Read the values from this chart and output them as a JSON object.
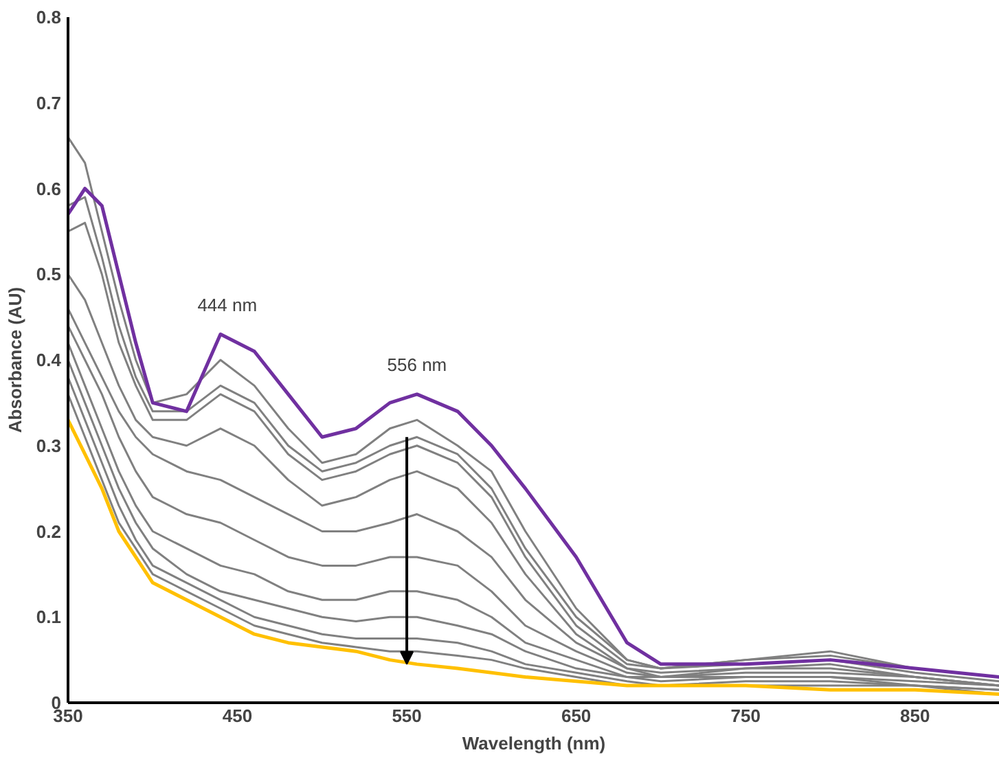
{
  "chart_data": {
    "type": "line",
    "xlabel": "Wavelength (nm)",
    "ylabel": "Absorbance (AU)",
    "x": [
      350,
      360,
      370,
      380,
      390,
      400,
      420,
      440,
      460,
      480,
      500,
      520,
      540,
      556,
      580,
      600,
      620,
      650,
      680,
      700,
      750,
      800,
      850,
      900
    ],
    "xlim": [
      350,
      900
    ],
    "xticks": [
      350,
      450,
      550,
      650,
      750,
      850
    ],
    "ylim": [
      0,
      0.8
    ],
    "yticks": [
      0,
      0.1,
      0.2,
      0.3,
      0.4,
      0.5,
      0.6,
      0.7,
      0.8
    ],
    "grid": false,
    "marker": "none",
    "line_style": "solid",
    "annotations": [
      {
        "text": "444 nm",
        "x": 444,
        "y": 0.43
      },
      {
        "text": "556 nm",
        "x": 556,
        "y": 0.36
      }
    ],
    "series": [
      {
        "color": "#808080",
        "values": [
          0.66,
          0.63,
          0.55,
          0.47,
          0.4,
          0.35,
          0.36,
          0.4,
          0.37,
          0.32,
          0.28,
          0.29,
          0.32,
          0.33,
          0.3,
          0.27,
          0.2,
          0.11,
          0.05,
          0.04,
          0.05,
          0.06,
          0.04,
          0.03
        ]
      },
      {
        "color": "#808080",
        "values": [
          0.58,
          0.59,
          0.52,
          0.44,
          0.38,
          0.34,
          0.34,
          0.37,
          0.35,
          0.3,
          0.27,
          0.28,
          0.3,
          0.31,
          0.29,
          0.25,
          0.18,
          0.1,
          0.05,
          0.04,
          0.05,
          0.055,
          0.04,
          0.03
        ]
      },
      {
        "color": "#808080",
        "values": [
          0.55,
          0.56,
          0.5,
          0.42,
          0.37,
          0.33,
          0.33,
          0.36,
          0.34,
          0.29,
          0.26,
          0.27,
          0.29,
          0.3,
          0.28,
          0.24,
          0.17,
          0.09,
          0.045,
          0.04,
          0.045,
          0.05,
          0.035,
          0.025
        ]
      },
      {
        "color": "#808080",
        "values": [
          0.5,
          0.47,
          0.42,
          0.37,
          0.33,
          0.31,
          0.3,
          0.32,
          0.3,
          0.26,
          0.23,
          0.24,
          0.26,
          0.27,
          0.25,
          0.21,
          0.15,
          0.08,
          0.04,
          0.035,
          0.04,
          0.045,
          0.03,
          0.02
        ]
      },
      {
        "color": "#808080",
        "values": [
          0.46,
          0.42,
          0.38,
          0.34,
          0.31,
          0.29,
          0.27,
          0.26,
          0.24,
          0.22,
          0.2,
          0.2,
          0.21,
          0.22,
          0.2,
          0.17,
          0.12,
          0.07,
          0.04,
          0.03,
          0.04,
          0.04,
          0.03,
          0.02
        ]
      },
      {
        "color": "#808080",
        "values": [
          0.44,
          0.4,
          0.36,
          0.31,
          0.27,
          0.24,
          0.22,
          0.21,
          0.19,
          0.17,
          0.16,
          0.16,
          0.17,
          0.17,
          0.16,
          0.13,
          0.09,
          0.06,
          0.035,
          0.03,
          0.035,
          0.035,
          0.03,
          0.02
        ]
      },
      {
        "color": "#808080",
        "values": [
          0.42,
          0.37,
          0.32,
          0.27,
          0.23,
          0.2,
          0.18,
          0.16,
          0.15,
          0.13,
          0.12,
          0.12,
          0.13,
          0.13,
          0.12,
          0.1,
          0.07,
          0.05,
          0.03,
          0.03,
          0.03,
          0.03,
          0.025,
          0.02
        ]
      },
      {
        "color": "#808080",
        "values": [
          0.4,
          0.35,
          0.3,
          0.25,
          0.21,
          0.18,
          0.15,
          0.13,
          0.12,
          0.11,
          0.1,
          0.095,
          0.1,
          0.1,
          0.09,
          0.08,
          0.06,
          0.04,
          0.03,
          0.025,
          0.03,
          0.03,
          0.02,
          0.015
        ]
      },
      {
        "color": "#808080",
        "values": [
          0.38,
          0.33,
          0.28,
          0.23,
          0.19,
          0.16,
          0.14,
          0.12,
          0.1,
          0.09,
          0.08,
          0.075,
          0.075,
          0.075,
          0.07,
          0.06,
          0.045,
          0.035,
          0.025,
          0.02,
          0.025,
          0.025,
          0.02,
          0.015
        ]
      },
      {
        "color": "#808080",
        "values": [
          0.36,
          0.31,
          0.26,
          0.21,
          0.18,
          0.15,
          0.13,
          0.11,
          0.09,
          0.08,
          0.07,
          0.065,
          0.06,
          0.06,
          0.055,
          0.05,
          0.04,
          0.03,
          0.02,
          0.02,
          0.02,
          0.02,
          0.02,
          0.01
        ]
      },
      {
        "color": "#7030a0",
        "values": [
          0.57,
          0.6,
          0.58,
          0.5,
          0.42,
          0.35,
          0.34,
          0.43,
          0.41,
          0.36,
          0.31,
          0.32,
          0.35,
          0.36,
          0.34,
          0.3,
          0.25,
          0.17,
          0.07,
          0.045,
          0.045,
          0.05,
          0.04,
          0.03
        ]
      },
      {
        "color": "#ffc000",
        "values": [
          0.33,
          0.29,
          0.25,
          0.2,
          0.17,
          0.14,
          0.12,
          0.1,
          0.08,
          0.07,
          0.065,
          0.06,
          0.05,
          0.045,
          0.04,
          0.035,
          0.03,
          0.025,
          0.02,
          0.02,
          0.02,
          0.015,
          0.015,
          0.01
        ]
      }
    ]
  }
}
